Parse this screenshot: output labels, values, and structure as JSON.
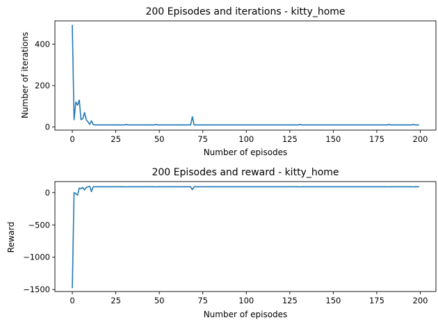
{
  "chart_data": [
    {
      "type": "line",
      "title": "200 Episodes and iterations - kitty_home",
      "xlabel": "Number of episodes",
      "ylabel": "Number of iterations",
      "xlim": [
        -10,
        209
      ],
      "ylim": [
        -15,
        512
      ],
      "xticks": [
        0,
        25,
        50,
        75,
        100,
        125,
        150,
        175,
        200
      ],
      "yticks": [
        0,
        200,
        400
      ],
      "grid": false,
      "color": "#1f77b4",
      "series": [
        {
          "x": [
            0,
            1,
            2,
            3,
            4,
            5,
            6,
            7,
            8,
            9,
            10,
            11,
            12,
            13,
            14,
            15,
            16,
            17,
            18,
            19,
            20,
            21,
            22,
            23,
            24,
            25,
            26,
            27,
            28,
            29,
            30,
            31,
            32,
            33,
            34,
            35,
            36,
            37,
            38,
            39,
            40,
            41,
            42,
            43,
            44,
            45,
            46,
            47,
            48,
            49,
            50,
            51,
            52,
            53,
            54,
            55,
            56,
            57,
            58,
            59,
            60,
            61,
            62,
            63,
            64,
            65,
            66,
            67,
            68,
            69,
            70,
            71,
            72,
            73,
            74,
            75,
            76,
            77,
            78,
            79,
            80,
            81,
            82,
            83,
            84,
            85,
            86,
            87,
            88,
            89,
            90,
            91,
            92,
            93,
            94,
            95,
            96,
            97,
            98,
            99,
            100,
            101,
            102,
            103,
            104,
            105,
            106,
            107,
            108,
            109,
            110,
            111,
            112,
            113,
            114,
            115,
            116,
            117,
            118,
            119,
            120,
            121,
            122,
            123,
            124,
            125,
            126,
            127,
            128,
            129,
            130,
            131,
            132,
            133,
            134,
            135,
            136,
            137,
            138,
            139,
            140,
            141,
            142,
            143,
            144,
            145,
            146,
            147,
            148,
            149,
            150,
            151,
            152,
            153,
            154,
            155,
            156,
            157,
            158,
            159,
            160,
            161,
            162,
            163,
            164,
            165,
            166,
            167,
            168,
            169,
            170,
            171,
            172,
            173,
            174,
            175,
            176,
            177,
            178,
            179,
            180,
            181,
            182,
            183,
            184,
            185,
            186,
            187,
            188,
            189,
            190,
            191,
            192,
            193,
            194,
            195,
            196,
            197,
            198,
            199
          ],
          "y": [
            490,
            35,
            120,
            105,
            130,
            35,
            40,
            70,
            35,
            25,
            12,
            30,
            12,
            10,
            10,
            10,
            10,
            10,
            10,
            10,
            10,
            10,
            10,
            10,
            10,
            10,
            10,
            10,
            10,
            10,
            10,
            12,
            10,
            10,
            10,
            10,
            10,
            10,
            10,
            10,
            10,
            10,
            10,
            10,
            10,
            10,
            10,
            10,
            12,
            10,
            10,
            10,
            10,
            10,
            10,
            10,
            10,
            10,
            10,
            10,
            10,
            10,
            10,
            10,
            10,
            10,
            10,
            10,
            10,
            50,
            10,
            10,
            10,
            10,
            10,
            10,
            10,
            10,
            10,
            10,
            10,
            10,
            10,
            10,
            10,
            10,
            10,
            10,
            10,
            10,
            10,
            10,
            10,
            10,
            10,
            10,
            10,
            10,
            10,
            10,
            10,
            10,
            10,
            10,
            10,
            10,
            10,
            10,
            10,
            10,
            10,
            10,
            10,
            10,
            10,
            10,
            10,
            10,
            10,
            10,
            10,
            10,
            10,
            10,
            10,
            10,
            10,
            10,
            10,
            10,
            10,
            12,
            10,
            10,
            10,
            10,
            10,
            10,
            10,
            10,
            10,
            10,
            10,
            10,
            10,
            10,
            10,
            10,
            10,
            10,
            10,
            10,
            10,
            10,
            10,
            10,
            10,
            10,
            10,
            10,
            10,
            10,
            10,
            10,
            10,
            10,
            10,
            10,
            10,
            10,
            10,
            10,
            10,
            10,
            10,
            10,
            10,
            10,
            10,
            10,
            10,
            10,
            12,
            10,
            10,
            10,
            10,
            10,
            10,
            10,
            10,
            10,
            10,
            10,
            10,
            10,
            12,
            10,
            10,
            10
          ]
        }
      ]
    },
    {
      "type": "line",
      "title": "200 Episodes and reward - kitty_home",
      "xlabel": "Number of episodes",
      "ylabel": "Reward",
      "xlim": [
        -10,
        209
      ],
      "ylim": [
        -1530,
        170
      ],
      "xticks": [
        0,
        25,
        50,
        75,
        100,
        125,
        150,
        175,
        200
      ],
      "yticks": [
        -1500,
        -1000,
        -500,
        0
      ],
      "grid": false,
      "color": "#1f77b4",
      "series": [
        {
          "x": [
            0,
            1,
            2,
            3,
            4,
            5,
            6,
            7,
            8,
            9,
            10,
            11,
            12,
            13,
            14,
            15,
            16,
            17,
            18,
            19,
            20,
            21,
            22,
            23,
            24,
            25,
            26,
            27,
            28,
            29,
            30,
            31,
            32,
            33,
            34,
            35,
            36,
            37,
            38,
            39,
            40,
            41,
            42,
            43,
            44,
            45,
            46,
            47,
            48,
            49,
            50,
            51,
            52,
            53,
            54,
            55,
            56,
            57,
            58,
            59,
            60,
            61,
            62,
            63,
            64,
            65,
            66,
            67,
            68,
            69,
            70,
            71,
            72,
            73,
            74,
            75,
            76,
            77,
            78,
            79,
            80,
            81,
            82,
            83,
            84,
            85,
            86,
            87,
            88,
            89,
            90,
            91,
            92,
            93,
            94,
            95,
            96,
            97,
            98,
            99,
            100,
            101,
            102,
            103,
            104,
            105,
            106,
            107,
            108,
            109,
            110,
            111,
            112,
            113,
            114,
            115,
            116,
            117,
            118,
            119,
            120,
            121,
            122,
            123,
            124,
            125,
            126,
            127,
            128,
            129,
            130,
            131,
            132,
            133,
            134,
            135,
            136,
            137,
            138,
            139,
            140,
            141,
            142,
            143,
            144,
            145,
            146,
            147,
            148,
            149,
            150,
            151,
            152,
            153,
            154,
            155,
            156,
            157,
            158,
            159,
            160,
            161,
            162,
            163,
            164,
            165,
            166,
            167,
            168,
            169,
            170,
            171,
            172,
            173,
            174,
            175,
            176,
            177,
            178,
            179,
            180,
            181,
            182,
            183,
            184,
            185,
            186,
            187,
            188,
            189,
            190,
            191,
            192,
            193,
            194,
            195,
            196,
            197,
            198,
            199
          ],
          "y": [
            -1470,
            0,
            -15,
            -40,
            70,
            60,
            80,
            40,
            80,
            90,
            95,
            15,
            90,
            90,
            90,
            90,
            90,
            90,
            90,
            90,
            90,
            90,
            90,
            90,
            90,
            90,
            90,
            90,
            90,
            90,
            90,
            88,
            90,
            90,
            90,
            90,
            90,
            90,
            90,
            90,
            90,
            90,
            90,
            90,
            90,
            90,
            90,
            90,
            88,
            90,
            90,
            90,
            90,
            90,
            90,
            90,
            90,
            90,
            90,
            90,
            90,
            90,
            90,
            90,
            90,
            90,
            90,
            90,
            90,
            45,
            90,
            90,
            90,
            90,
            90,
            90,
            90,
            90,
            90,
            90,
            90,
            90,
            90,
            90,
            90,
            90,
            90,
            90,
            90,
            90,
            90,
            90,
            90,
            90,
            90,
            90,
            90,
            90,
            90,
            90,
            90,
            90,
            90,
            90,
            90,
            90,
            90,
            90,
            90,
            90,
            90,
            90,
            90,
            90,
            90,
            90,
            90,
            90,
            90,
            90,
            90,
            90,
            90,
            90,
            90,
            90,
            90,
            90,
            90,
            90,
            90,
            88,
            90,
            90,
            90,
            90,
            90,
            90,
            90,
            90,
            90,
            90,
            90,
            90,
            90,
            90,
            90,
            90,
            90,
            90,
            90,
            90,
            90,
            90,
            90,
            90,
            90,
            90,
            90,
            90,
            90,
            90,
            90,
            90,
            90,
            90,
            90,
            90,
            90,
            90,
            90,
            90,
            90,
            90,
            90,
            90,
            90,
            90,
            90,
            90,
            90,
            90,
            88,
            90,
            90,
            90,
            90,
            90,
            90,
            90,
            90,
            90,
            90,
            90,
            90,
            90,
            88,
            90,
            90,
            90
          ]
        }
      ]
    }
  ]
}
